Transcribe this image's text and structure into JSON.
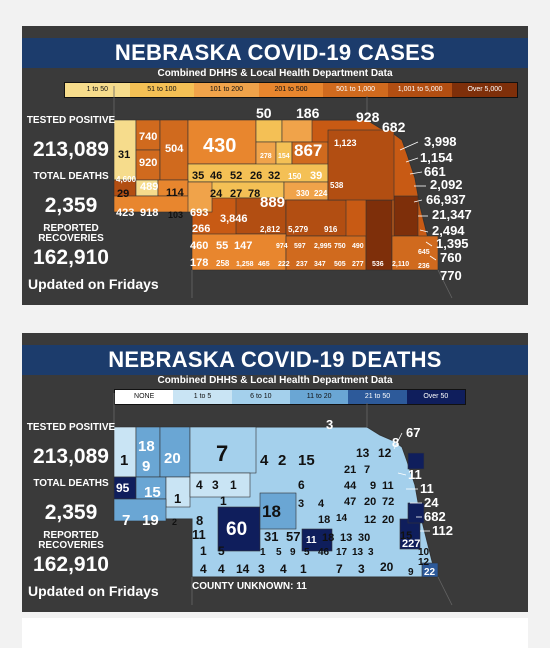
{
  "cases": {
    "title": "NEBRASKA COVID-19 CASES",
    "subtitle": "Combined DHHS & Local Health Department Data",
    "legend": [
      {
        "label": "1 to 50",
        "color": "#f6dc8c"
      },
      {
        "label": "51 to 100",
        "color": "#f4c055"
      },
      {
        "label": "101 to 200",
        "color": "#f0a34a"
      },
      {
        "label": "201 to 500",
        "color": "#e8862e"
      },
      {
        "label": "501 to 1,000",
        "color": "#d06a1e"
      },
      {
        "label": "1,001 to 5,000",
        "color": "#b24e12"
      },
      {
        "label": "Over 5,000",
        "color": "#7e2f0a"
      }
    ],
    "tested_positive_label": "TESTED POSITIVE",
    "tested_positive_value": "213,089",
    "total_deaths_label": "TOTAL DEATHS",
    "total_deaths_value": "2,359",
    "recoveries_label": "REPORTED RECOVERIES",
    "recoveries_value": "162,910",
    "updated": "Updated on Fridays",
    "county_labels": [
      "31",
      "740",
      "920",
      "504",
      "430",
      "50",
      "186",
      "278",
      "154",
      "867",
      "928",
      "682",
      "1,123",
      "3,998",
      "1,154",
      "661",
      "2,092",
      "66,937",
      "21,347",
      "2,494",
      "1,395",
      "760",
      "770",
      "4,600",
      "29",
      "489",
      "114",
      "35",
      "46",
      "52",
      "26",
      "32",
      "150",
      "39",
      "24",
      "27",
      "78",
      "889",
      "423",
      "918",
      "103",
      "693",
      "3,846",
      "330",
      "224",
      "538",
      "266",
      "460",
      "55",
      "147",
      "2,812",
      "5,279",
      "916",
      "178",
      "258",
      "1,258",
      "974",
      "597",
      "2,995",
      "750",
      "490",
      "645",
      "236",
      "465",
      "222",
      "237",
      "347",
      "505",
      "277",
      "536",
      "2,110"
    ]
  },
  "deaths": {
    "title": "NEBRASKA COVID-19 DEATHS",
    "subtitle": "Combined DHHS & Local Health Department Data",
    "legend": [
      {
        "label": "NONE",
        "color": "#ffffff"
      },
      {
        "label": "1 to 5",
        "color": "#c9e4f4"
      },
      {
        "label": "6 to 10",
        "color": "#a4d0ec"
      },
      {
        "label": "11 to 20",
        "color": "#6aa6d4"
      },
      {
        "label": "21 to 50",
        "color": "#2d5a9a"
      },
      {
        "label": "Over 50",
        "color": "#0f1e5c"
      }
    ],
    "tested_positive_label": "TESTED POSITIVE",
    "tested_positive_value": "213,089",
    "total_deaths_label": "TOTAL DEATHS",
    "total_deaths_value": "2,359",
    "recoveries_label": "REPORTED RECOVERIES",
    "recoveries_value": "162,910",
    "updated": "Updated on Fridays",
    "county_unknown": "COUNTY UNKNOWN: 11",
    "county_labels": [
      "1",
      "18",
      "9",
      "20",
      "7",
      "4",
      "2",
      "15",
      "3",
      "13",
      "12",
      "8",
      "67",
      "11",
      "11",
      "24",
      "682",
      "112",
      "95",
      "15",
      "1",
      "4",
      "3",
      "1",
      "6",
      "21",
      "7",
      "44",
      "9",
      "11",
      "47",
      "20",
      "72",
      "7",
      "19",
      "2",
      "8",
      "1",
      "18",
      "3",
      "4",
      "14",
      "18",
      "12",
      "20",
      "15",
      "11",
      "60",
      "31",
      "57",
      "11",
      "18",
      "13",
      "30",
      "227",
      "1",
      "5",
      "1",
      "5",
      "9",
      "5",
      "46",
      "17",
      "13",
      "3",
      "10",
      "12",
      "4",
      "4",
      "14",
      "3",
      "4",
      "1",
      "7",
      "3",
      "20",
      "9",
      "22"
    ]
  }
}
